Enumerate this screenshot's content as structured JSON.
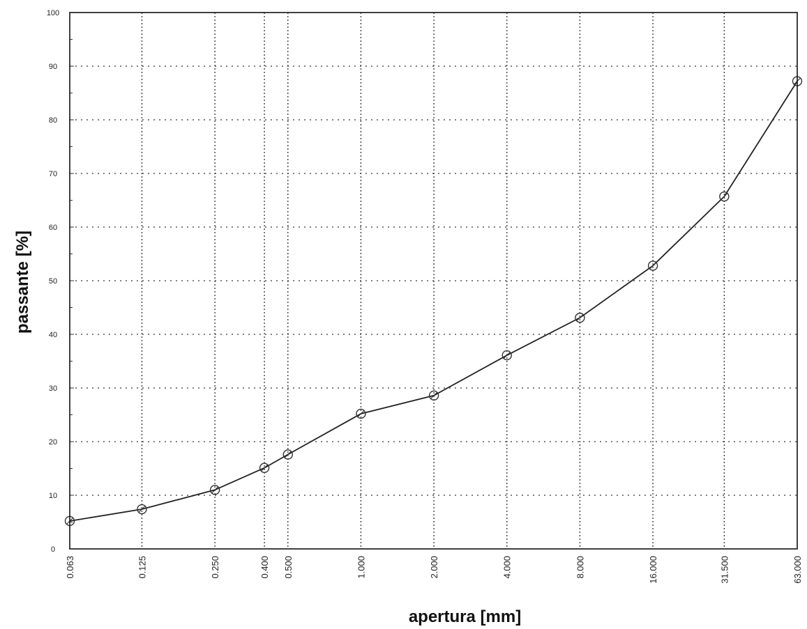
{
  "chart_data": {
    "type": "line",
    "title": "",
    "xlabel": "apertura [mm]",
    "ylabel": "passante [%]",
    "x_scale": "log",
    "ylim": [
      0,
      100
    ],
    "y_ticks": [
      "0",
      "10",
      "20",
      "30",
      "40",
      "50",
      "60",
      "70",
      "80",
      "90",
      "100"
    ],
    "x_tick_labels": [
      "0.063",
      "0.125",
      "0.250",
      "0.400",
      "0.500",
      "1.000",
      "2.000",
      "4.000",
      "8.000",
      "16.000",
      "31.500",
      "63.000"
    ],
    "grid": true,
    "legend": "none",
    "series": [
      {
        "x": [
          0.063,
          0.125,
          0.25,
          0.4,
          0.5,
          1.0,
          2.0,
          4.0,
          8.0,
          16.0,
          31.5,
          63.0
        ],
        "values": [
          5.2,
          7.4,
          11.0,
          15.1,
          17.6,
          25.2,
          28.6,
          36.1,
          43.1,
          52.8,
          65.7,
          87.2
        ]
      }
    ],
    "colors": {
      "line": "#222222",
      "grid": "#333333",
      "marker": "#333333"
    }
  }
}
